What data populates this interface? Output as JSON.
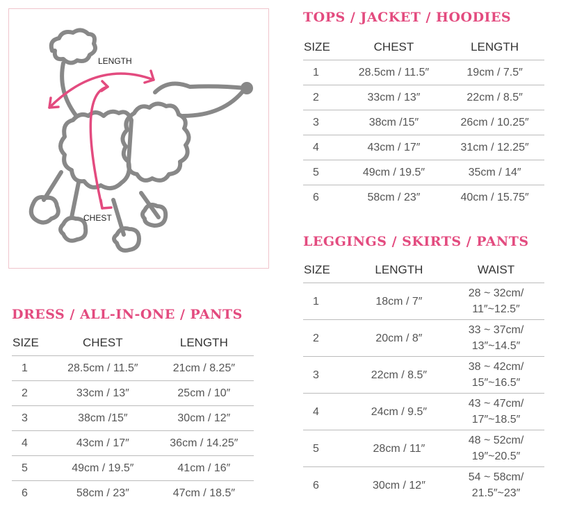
{
  "illustration": {
    "length_label": "LENGTH",
    "chest_label": "CHEST",
    "accent": "#e34b7f",
    "outline": "#888888"
  },
  "tops": {
    "title": "TOPS / JACKET / HOODIES",
    "headers": [
      "SIZE",
      "CHEST",
      "LENGTH"
    ],
    "rows": [
      [
        "1",
        "28.5cm / 11.5″",
        "19cm / 7.5″"
      ],
      [
        "2",
        "33cm / 13″",
        "22cm / 8.5″"
      ],
      [
        "3",
        "38cm /15″",
        "26cm / 10.25″"
      ],
      [
        "4",
        "43cm / 17″",
        "31cm / 12.25″"
      ],
      [
        "5",
        "49cm / 19.5″",
        "35cm / 14″"
      ],
      [
        "6",
        "58cm / 23″",
        "40cm / 15.75″"
      ]
    ]
  },
  "leggings": {
    "title": "LEGGINGS / SKIRTS / PANTS",
    "headers": [
      "SIZE",
      "LENGTH",
      "WAIST"
    ],
    "rows": [
      [
        "1",
        "18cm / 7″",
        "28 ~ 32cm/",
        "11″~12.5″"
      ],
      [
        "2",
        "20cm / 8″",
        "33 ~ 37cm/",
        "13″~14.5″"
      ],
      [
        "3",
        "22cm / 8.5″",
        "38 ~ 42cm/",
        "15″~16.5″"
      ],
      [
        "4",
        "24cm / 9.5″",
        "43 ~ 47cm/",
        "17″~18.5″"
      ],
      [
        "5",
        "28cm / 11″",
        "48 ~ 52cm/",
        "19″~20.5″"
      ],
      [
        "6",
        "30cm / 12″",
        "54 ~ 58cm/",
        "21.5″~23″"
      ]
    ]
  },
  "dress": {
    "title": "DRESS / ALL-IN-ONE / PANTS",
    "headers": [
      "SIZE",
      "CHEST",
      "LENGTH"
    ],
    "rows": [
      [
        "1",
        "28.5cm / 11.5″",
        "21cm / 8.25″"
      ],
      [
        "2",
        "33cm / 13″",
        "25cm / 10″"
      ],
      [
        "3",
        "38cm /15″",
        "30cm / 12″"
      ],
      [
        "4",
        "43cm / 17″",
        "36cm / 14.25″"
      ],
      [
        "5",
        "49cm / 19.5″",
        "41cm / 16″"
      ],
      [
        "6",
        "58cm / 23″",
        "47cm / 18.5″"
      ]
    ]
  }
}
